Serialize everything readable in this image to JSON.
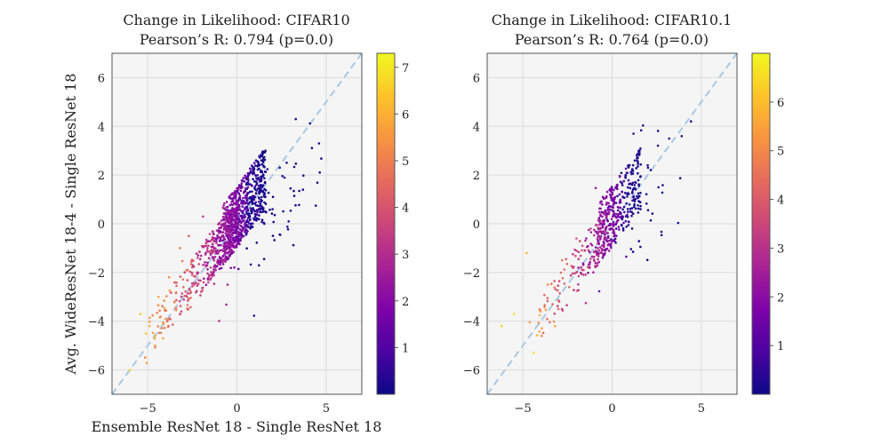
{
  "chart_data": [
    {
      "type": "scatter",
      "title": "Change in Likelihood: CIFAR10",
      "subtitle": "Pearson’s R: 0.794 (p=0.0)",
      "xlabel": "Ensemble ResNet 18 - Single ResNet 18",
      "ylabel": "Avg. WideResNet 18-4 - Single ResNet 18",
      "xlim": [
        -7,
        7
      ],
      "ylim": [
        -7,
        7
      ],
      "xticks": [
        -5,
        0,
        5
      ],
      "yticks": [
        -6,
        -4,
        -2,
        0,
        2,
        4,
        6
      ],
      "grid": true,
      "background": "#f5f5f5",
      "reference_line": {
        "x": [
          -7,
          7
        ],
        "y": [
          -7,
          7
        ],
        "style": "dashed",
        "color": "#a9c8e4"
      },
      "colorbar": {
        "cmap": "plasma",
        "min": 0,
        "max": 7.3,
        "ticks": [
          1,
          2,
          3,
          4,
          5,
          6,
          7
        ]
      },
      "n_points": 1100,
      "series": [
        {
          "points": [
            [
              -6.0,
              -6.0,
              6.6
            ],
            [
              -5.4,
              -3.7,
              6.4
            ],
            [
              -5.1,
              -4.5,
              6.5
            ],
            [
              -4.9,
              -4.2,
              6.0
            ],
            [
              -4.6,
              -4.6,
              5.8
            ],
            [
              -4.4,
              -3.0,
              5.7
            ],
            [
              -4.0,
              -3.9,
              5.5
            ],
            [
              -3.8,
              -2.2,
              5.3
            ],
            [
              -3.5,
              -3.2,
              5.0
            ],
            [
              -3.2,
              -1.0,
              4.8
            ],
            [
              -3.0,
              -2.6,
              4.6
            ],
            [
              -2.7,
              -0.5,
              4.2
            ],
            [
              -2.5,
              -2.1,
              4.1
            ],
            [
              -2.2,
              -1.4,
              3.8
            ],
            [
              -1.9,
              0.3,
              3.5
            ],
            [
              -1.6,
              -0.9,
              3.3
            ],
            [
              -1.2,
              -1.8,
              3.0
            ],
            [
              -1.0,
              -0.2,
              2.8
            ],
            [
              -0.7,
              -0.6,
              2.5
            ],
            [
              -0.4,
              0.4,
              2.0
            ],
            [
              0.0,
              0.0,
              1.6
            ],
            [
              0.3,
              1.5,
              1.2
            ],
            [
              0.6,
              0.6,
              1.0
            ],
            [
              0.9,
              2.1,
              0.6
            ],
            [
              1.2,
              0.2,
              0.5
            ],
            [
              1.6,
              1.1,
              0.4
            ],
            [
              2.0,
              0.6,
              0.3
            ],
            [
              2.4,
              2.3,
              0.3
            ],
            [
              2.9,
              0.1,
              0.2
            ],
            [
              3.3,
              4.3,
              0.2
            ],
            [
              3.7,
              1.4,
              0.2
            ],
            [
              4.6,
              3.3,
              0.2
            ]
          ]
        }
      ]
    },
    {
      "type": "scatter",
      "title": "Change in Likelihood: CIFAR10.1",
      "subtitle": "Pearson’s R: 0.764 (p=0.0)",
      "xlabel": "",
      "ylabel": "",
      "xlim": [
        -7,
        7
      ],
      "ylim": [
        -7,
        7
      ],
      "xticks": [
        -5,
        0,
        5
      ],
      "yticks": [
        -6,
        -4,
        -2,
        0,
        2,
        4,
        6
      ],
      "grid": true,
      "background": "#f5f5f5",
      "reference_line": {
        "x": [
          -7,
          7
        ],
        "y": [
          -7,
          7
        ],
        "style": "dashed",
        "color": "#a9c8e4"
      },
      "colorbar": {
        "cmap": "plasma",
        "min": 0,
        "max": 7.0,
        "ticks": [
          1,
          2,
          3,
          4,
          5,
          6
        ]
      },
      "n_points": 520,
      "series": [
        {
          "points": [
            [
              -6.2,
              -4.2,
              6.4
            ],
            [
              -5.5,
              -3.7,
              6.5
            ],
            [
              -4.8,
              -1.2,
              5.8
            ],
            [
              -4.4,
              -5.3,
              6.6
            ],
            [
              -4.0,
              -3.6,
              5.5
            ],
            [
              -3.6,
              -2.5,
              5.1
            ],
            [
              -3.2,
              -4.2,
              5.6
            ],
            [
              -2.8,
              -1.5,
              4.6
            ],
            [
              -2.4,
              -2.6,
              4.4
            ],
            [
              -2.0,
              -0.6,
              3.9
            ],
            [
              -1.6,
              -1.9,
              3.6
            ],
            [
              -1.2,
              -0.2,
              3.1
            ],
            [
              -0.8,
              -1.0,
              2.7
            ],
            [
              -0.4,
              0.5,
              2.2
            ],
            [
              0.0,
              -0.2,
              1.8
            ],
            [
              0.3,
              1.6,
              1.3
            ],
            [
              0.6,
              0.3,
              1.0
            ],
            [
              0.9,
              2.4,
              0.6
            ],
            [
              1.2,
              3.7,
              0.4
            ],
            [
              1.6,
              0.6,
              0.3
            ],
            [
              2.0,
              2.4,
              0.3
            ],
            [
              2.6,
              1.5,
              0.2
            ],
            [
              3.2,
              3.5,
              0.2
            ],
            [
              3.9,
              3.6,
              0.2
            ]
          ]
        }
      ]
    }
  ]
}
